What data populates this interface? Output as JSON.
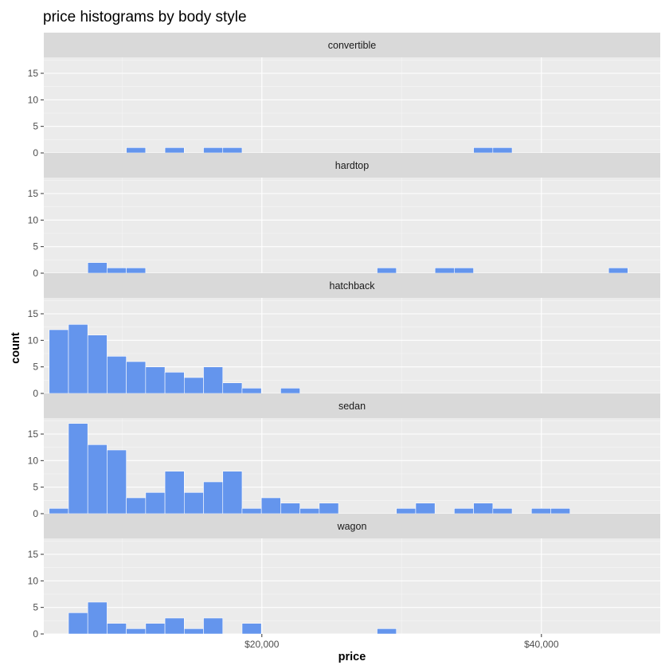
{
  "chart_data": {
    "type": "bar",
    "title": "price histograms by body style",
    "xlabel": "price",
    "ylabel": "count",
    "ylim": [
      0,
      18
    ],
    "xlim": [
      4400,
      48500
    ],
    "y_ticks": [
      0,
      5,
      10,
      15
    ],
    "x_ticks": [
      {
        "value": 20000,
        "label": "$20,000"
      },
      {
        "value": 40000,
        "label": "$40,000"
      }
    ],
    "grid": true,
    "bin_width": 1380,
    "bar_color": "#6495ED",
    "panels": [
      {
        "name": "convertible",
        "bins": [
          {
            "x": 10995,
            "count": 1
          },
          {
            "x": 13755,
            "count": 1
          },
          {
            "x": 16515,
            "count": 1
          },
          {
            "x": 17895,
            "count": 1
          },
          {
            "x": 35835,
            "count": 1
          },
          {
            "x": 37215,
            "count": 1
          }
        ]
      },
      {
        "name": "hardtop",
        "bins": [
          {
            "x": 8235,
            "count": 2
          },
          {
            "x": 9615,
            "count": 1
          },
          {
            "x": 10995,
            "count": 1
          },
          {
            "x": 28935,
            "count": 1
          },
          {
            "x": 33075,
            "count": 1
          },
          {
            "x": 34455,
            "count": 1
          },
          {
            "x": 45495,
            "count": 1
          }
        ]
      },
      {
        "name": "hatchback",
        "bins": [
          {
            "x": 5475,
            "count": 12
          },
          {
            "x": 6855,
            "count": 13
          },
          {
            "x": 8235,
            "count": 11
          },
          {
            "x": 9615,
            "count": 7
          },
          {
            "x": 10995,
            "count": 6
          },
          {
            "x": 12375,
            "count": 5
          },
          {
            "x": 13755,
            "count": 4
          },
          {
            "x": 15135,
            "count": 3
          },
          {
            "x": 16515,
            "count": 5
          },
          {
            "x": 17895,
            "count": 2
          },
          {
            "x": 19275,
            "count": 1
          },
          {
            "x": 22035,
            "count": 1
          }
        ]
      },
      {
        "name": "sedan",
        "bins": [
          {
            "x": 5475,
            "count": 1
          },
          {
            "x": 6855,
            "count": 17
          },
          {
            "x": 8235,
            "count": 13
          },
          {
            "x": 9615,
            "count": 12
          },
          {
            "x": 10995,
            "count": 3
          },
          {
            "x": 12375,
            "count": 4
          },
          {
            "x": 13755,
            "count": 8
          },
          {
            "x": 15135,
            "count": 4
          },
          {
            "x": 16515,
            "count": 6
          },
          {
            "x": 17895,
            "count": 8
          },
          {
            "x": 19275,
            "count": 1
          },
          {
            "x": 20655,
            "count": 3
          },
          {
            "x": 22035,
            "count": 2
          },
          {
            "x": 23415,
            "count": 1
          },
          {
            "x": 24795,
            "count": 2
          },
          {
            "x": 30315,
            "count": 1
          },
          {
            "x": 31695,
            "count": 2
          },
          {
            "x": 34455,
            "count": 1
          },
          {
            "x": 35835,
            "count": 2
          },
          {
            "x": 37215,
            "count": 1
          },
          {
            "x": 39975,
            "count": 1
          },
          {
            "x": 41355,
            "count": 1
          }
        ]
      },
      {
        "name": "wagon",
        "bins": [
          {
            "x": 6855,
            "count": 4
          },
          {
            "x": 8235,
            "count": 6
          },
          {
            "x": 9615,
            "count": 2
          },
          {
            "x": 10995,
            "count": 1
          },
          {
            "x": 12375,
            "count": 2
          },
          {
            "x": 13755,
            "count": 3
          },
          {
            "x": 15135,
            "count": 1
          },
          {
            "x": 16515,
            "count": 3
          },
          {
            "x": 19275,
            "count": 2
          },
          {
            "x": 28935,
            "count": 1
          }
        ]
      }
    ]
  }
}
